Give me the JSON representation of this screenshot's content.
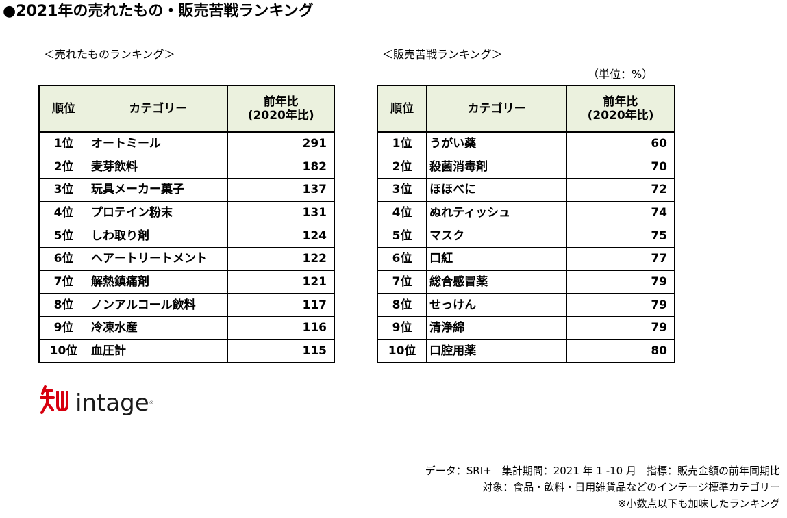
{
  "title": "●2021年の売れたもの・販売苦戦ランキング",
  "unit_note": "（単位：%）",
  "tables": [
    {
      "heading": "＜売れたものランキング＞",
      "columns": {
        "rank": "順位",
        "category": "カテゴリー",
        "value_line1": "前年比",
        "value_line2": "(2020年比)"
      },
      "rows": [
        {
          "rank": "1位",
          "category": "オートミール",
          "value": "291"
        },
        {
          "rank": "2位",
          "category": "麦芽飲料",
          "value": "182"
        },
        {
          "rank": "3位",
          "category": "玩具メーカー菓子",
          "value": "137"
        },
        {
          "rank": "4位",
          "category": "プロテイン粉末",
          "value": "131"
        },
        {
          "rank": "5位",
          "category": "しわ取り剤",
          "value": "124"
        },
        {
          "rank": "6位",
          "category": "ヘアートリートメント",
          "value": "122"
        },
        {
          "rank": "7位",
          "category": "解熱鎮痛剤",
          "value": "121"
        },
        {
          "rank": "8位",
          "category": "ノンアルコール飲料",
          "value": "117"
        },
        {
          "rank": "9位",
          "category": "冷凍水産",
          "value": "116"
        },
        {
          "rank": "10位",
          "category": "血圧計",
          "value": "115"
        }
      ]
    },
    {
      "heading": "＜販売苦戦ランキング＞",
      "columns": {
        "rank": "順位",
        "category": "カテゴリー",
        "value_line1": "前年比",
        "value_line2": "(2020年比)"
      },
      "rows": [
        {
          "rank": "1位",
          "category": "うがい薬",
          "value": "60"
        },
        {
          "rank": "2位",
          "category": "殺菌消毒剤",
          "value": "70"
        },
        {
          "rank": "3位",
          "category": "ほほべに",
          "value": "72"
        },
        {
          "rank": "4位",
          "category": "ぬれティッシュ",
          "value": "74"
        },
        {
          "rank": "5位",
          "category": "マスク",
          "value": "75"
        },
        {
          "rank": "6位",
          "category": "口紅",
          "value": "77"
        },
        {
          "rank": "7位",
          "category": "総合感冒薬",
          "value": "79"
        },
        {
          "rank": "8位",
          "category": "せっけん",
          "value": "79"
        },
        {
          "rank": "9位",
          "category": "清浄綿",
          "value": "79"
        },
        {
          "rank": "10位",
          "category": "口腔用薬",
          "value": "80"
        }
      ]
    }
  ],
  "logo": {
    "text": "intage",
    "mark_icon": "intage-chi-logo-icon",
    "brand_color": "#d7000f"
  },
  "notes": [
    "データ：SRI+　集計期間：2021 年 1 -10 月　指標：販売金額の前年同期比",
    "対象：食品・飲料・日用雑貨品などのインテージ標準カテゴリー",
    "※小数点以下も加味したランキング"
  ],
  "colors": {
    "header_bg": "#ebf1de"
  }
}
